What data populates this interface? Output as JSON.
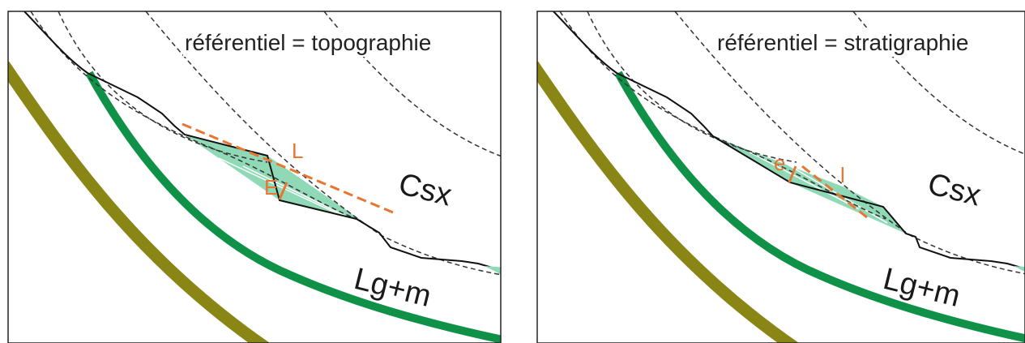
{
  "colors": {
    "frame": "#222222",
    "topography": "#111111",
    "dashed": "#333333",
    "olive_layer": "#8a8616",
    "green_layer": "#0f9148",
    "slide_fill": "#8fd9b6",
    "measure": "#e87532"
  },
  "panels": [
    {
      "title": "référentiel = topographie",
      "unit_upper": "Csx",
      "unit_lower": "Lg+m",
      "measure_length": "L",
      "measure_thickness": "E"
    },
    {
      "title": "référentiel = stratigraphie",
      "unit_upper": "Csx",
      "unit_lower": "Lg+m",
      "measure_length": "l",
      "measure_thickness": "e"
    }
  ]
}
